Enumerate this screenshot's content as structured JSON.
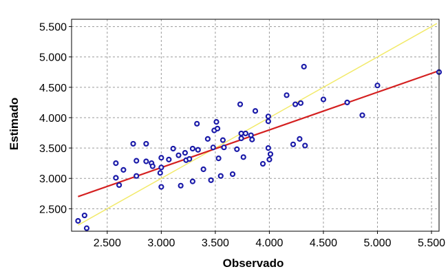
{
  "chart_data": {
    "type": "scatter",
    "title": "",
    "xlabel": "Observado",
    "ylabel": "Estimado",
    "xlim": [
      2170,
      5570
    ],
    "ylim": [
      2130,
      5620
    ],
    "xticks": [
      2500,
      3000,
      3500,
      4000,
      4500,
      5000,
      5500
    ],
    "yticks": [
      2500,
      3000,
      3500,
      4000,
      4500,
      5000,
      5500
    ],
    "xtick_labels": [
      "2.500",
      "3.000",
      "3.500",
      "4.000",
      "4.500",
      "5.000",
      "5.500"
    ],
    "ytick_labels": [
      "2.500",
      "3.000",
      "3.500",
      "4.000",
      "4.500",
      "5.000",
      "5.500"
    ],
    "grid": true,
    "grid_style": "dashed",
    "colors": {
      "points": "#1a1aa8",
      "regression_line": "#d42020",
      "identity_line": "#f2ea6a",
      "grid": "#9a9a9a"
    },
    "regression_line": {
      "x": [
        2230,
        5550
      ],
      "y": [
        2700,
        4760
      ]
    },
    "identity_line": {
      "x": [
        2230,
        5550
      ],
      "y": [
        2230,
        5550
      ]
    },
    "points": [
      {
        "x": 2230,
        "y": 2300
      },
      {
        "x": 2290,
        "y": 2390
      },
      {
        "x": 2310,
        "y": 2180
      },
      {
        "x": 2580,
        "y": 3250
      },
      {
        "x": 2580,
        "y": 3010
      },
      {
        "x": 2610,
        "y": 2890
      },
      {
        "x": 2650,
        "y": 3140
      },
      {
        "x": 2740,
        "y": 3570
      },
      {
        "x": 2770,
        "y": 3290
      },
      {
        "x": 2770,
        "y": 3040
      },
      {
        "x": 2860,
        "y": 3570
      },
      {
        "x": 2860,
        "y": 3280
      },
      {
        "x": 2910,
        "y": 3250
      },
      {
        "x": 2920,
        "y": 3200
      },
      {
        "x": 2990,
        "y": 3090
      },
      {
        "x": 3000,
        "y": 3340
      },
      {
        "x": 3000,
        "y": 3180
      },
      {
        "x": 3000,
        "y": 2860
      },
      {
        "x": 3070,
        "y": 3310
      },
      {
        "x": 3110,
        "y": 3490
      },
      {
        "x": 3160,
        "y": 3380
      },
      {
        "x": 3180,
        "y": 2880
      },
      {
        "x": 3220,
        "y": 3420
      },
      {
        "x": 3230,
        "y": 3300
      },
      {
        "x": 3260,
        "y": 3320
      },
      {
        "x": 3290,
        "y": 3490
      },
      {
        "x": 3290,
        "y": 2950
      },
      {
        "x": 3330,
        "y": 3900
      },
      {
        "x": 3340,
        "y": 3470
      },
      {
        "x": 3390,
        "y": 3150
      },
      {
        "x": 3430,
        "y": 3650
      },
      {
        "x": 3460,
        "y": 2970
      },
      {
        "x": 3480,
        "y": 3510
      },
      {
        "x": 3490,
        "y": 3790
      },
      {
        "x": 3510,
        "y": 3930
      },
      {
        "x": 3520,
        "y": 3820
      },
      {
        "x": 3530,
        "y": 3330
      },
      {
        "x": 3550,
        "y": 3040
      },
      {
        "x": 3570,
        "y": 3630
      },
      {
        "x": 3580,
        "y": 3510
      },
      {
        "x": 3660,
        "y": 3070
      },
      {
        "x": 3700,
        "y": 3480
      },
      {
        "x": 3730,
        "y": 4220
      },
      {
        "x": 3740,
        "y": 3740
      },
      {
        "x": 3740,
        "y": 3660
      },
      {
        "x": 3760,
        "y": 3350
      },
      {
        "x": 3780,
        "y": 3740
      },
      {
        "x": 3830,
        "y": 3710
      },
      {
        "x": 3840,
        "y": 3640
      },
      {
        "x": 3870,
        "y": 4110
      },
      {
        "x": 3940,
        "y": 3240
      },
      {
        "x": 3990,
        "y": 4020
      },
      {
        "x": 3990,
        "y": 3940
      },
      {
        "x": 3990,
        "y": 3500
      },
      {
        "x": 4010,
        "y": 3400
      },
      {
        "x": 4000,
        "y": 3310
      },
      {
        "x": 4160,
        "y": 4370
      },
      {
        "x": 4220,
        "y": 3560
      },
      {
        "x": 4240,
        "y": 4220
      },
      {
        "x": 4280,
        "y": 3650
      },
      {
        "x": 4290,
        "y": 4240
      },
      {
        "x": 4320,
        "y": 4840
      },
      {
        "x": 4330,
        "y": 3540
      },
      {
        "x": 4500,
        "y": 4300
      },
      {
        "x": 4720,
        "y": 4250
      },
      {
        "x": 4860,
        "y": 4040
      },
      {
        "x": 5000,
        "y": 4530
      },
      {
        "x": 5570,
        "y": 4750
      }
    ]
  }
}
